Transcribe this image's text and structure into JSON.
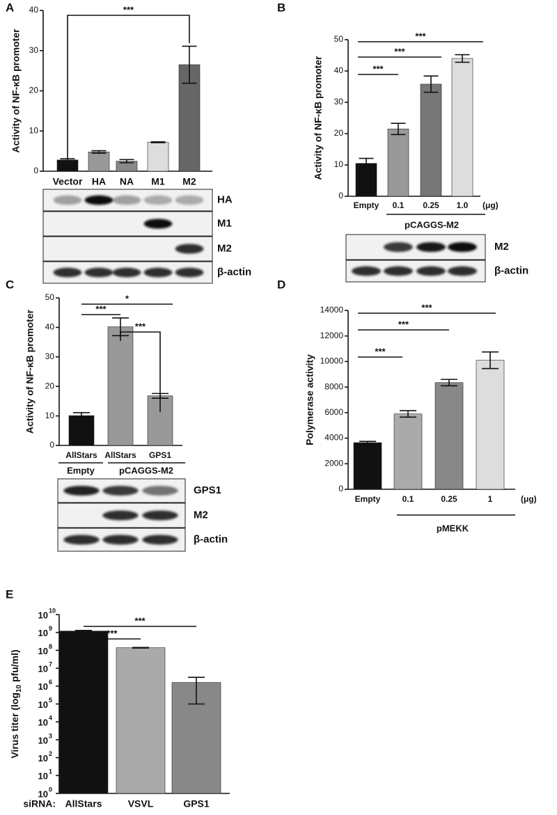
{
  "chart_data": [
    {
      "type": "bar",
      "panel": "A",
      "ylabel": "Activity of NF-κB promoter",
      "categories": [
        "Vector",
        "HA",
        "NA",
        "M1",
        "M2"
      ],
      "values": [
        2.8,
        4.8,
        2.5,
        7.2,
        26.5
      ],
      "errors": [
        0.3,
        0.3,
        0.4,
        0.1,
        4.6
      ],
      "colors": [
        "#111111",
        "#999999",
        "#888888",
        "#dddddd",
        "#666666"
      ],
      "ylim": [
        0,
        40
      ],
      "yticks": [
        0,
        10,
        20,
        30,
        40
      ],
      "annotations": [
        "***"
      ],
      "blots": [
        "HA",
        "M1",
        "M2",
        "β-actin"
      ]
    },
    {
      "type": "bar",
      "panel": "B",
      "ylabel": "Activity of NF-κB promoter",
      "categories": [
        "Empty",
        "0.1",
        "0.25",
        "1.0"
      ],
      "unit": "(μg)",
      "groups": [
        "pCAGGS-M2"
      ],
      "values": [
        10.5,
        21.5,
        35.8,
        44
      ],
      "errors": [
        1.6,
        1.8,
        2.6,
        1.2
      ],
      "colors": [
        "#111111",
        "#999999",
        "#777777",
        "#dddddd"
      ],
      "ylim": [
        0,
        50
      ],
      "yticks": [
        0,
        10,
        20,
        30,
        40,
        50
      ],
      "annotations": [
        "***",
        "***",
        "***"
      ],
      "blots": [
        "M2",
        "β-actin"
      ]
    },
    {
      "type": "bar",
      "panel": "C",
      "ylabel": "Activity of NF-κB promoter",
      "categories": [
        "AllStars",
        "AllStars",
        "GPS1"
      ],
      "groups": [
        "Empty",
        "pCAGGS-M2"
      ],
      "values": [
        10.1,
        40.2,
        16.8
      ],
      "errors": [
        1.0,
        3.0,
        0.8
      ],
      "colors": [
        "#111111",
        "#999999",
        "#999999"
      ],
      "ylim": [
        0,
        50
      ],
      "yticks": [
        0,
        10,
        20,
        30,
        40,
        50
      ],
      "annotations": [
        "*",
        "***",
        "***"
      ],
      "blots": [
        "GPS1",
        "M2",
        "β-actin"
      ]
    },
    {
      "type": "bar",
      "panel": "D",
      "ylabel": "Polymerase activity",
      "categories": [
        "Empty",
        "0.1",
        "0.25",
        "1"
      ],
      "unit": "(μg)",
      "groups": [
        "pMEKK"
      ],
      "values": [
        3650,
        5900,
        8350,
        10100
      ],
      "errors": [
        100,
        250,
        250,
        650
      ],
      "colors": [
        "#111111",
        "#aaaaaa",
        "#888888",
        "#dddddd"
      ],
      "ylim": [
        0,
        14000
      ],
      "yticks": [
        0,
        2000,
        4000,
        6000,
        8000,
        10000,
        12000,
        14000
      ],
      "annotations": [
        "***",
        "***",
        "***"
      ]
    },
    {
      "type": "bar",
      "panel": "E",
      "log_scale": true,
      "ylabel": [
        "Virus titer (log",
        "10",
        " pfu/ml)"
      ],
      "xprefix": "siRNA:",
      "categories": [
        "AllStars",
        "VSVL",
        "GPS1"
      ],
      "values": [
        1200000000,
        140000000,
        1600000
      ],
      "errors": [
        100000000,
        5000000,
        1500000
      ],
      "colors": [
        "#111111",
        "#aaaaaa",
        "#888888"
      ],
      "ylim": [
        1,
        10000000000
      ],
      "yticks": [
        {
          "value": 1,
          "label": "10",
          "exponent": "0"
        },
        {
          "value": 10,
          "label": "10",
          "exponent": "1"
        },
        {
          "value": 100,
          "label": "10",
          "exponent": "2"
        },
        {
          "value": 1000,
          "label": "10",
          "exponent": "3"
        },
        {
          "value": 10000,
          "label": "10",
          "exponent": "4"
        },
        {
          "value": 100000,
          "label": "10",
          "exponent": "5"
        },
        {
          "value": 1000000,
          "label": "10",
          "exponent": "6"
        },
        {
          "value": 10000000,
          "label": "10",
          "exponent": "7"
        },
        {
          "value": 100000000,
          "label": "10",
          "exponent": "8"
        },
        {
          "value": 1000000000,
          "label": "10",
          "exponent": "9"
        },
        {
          "value": 10000000000,
          "label": "10",
          "exponent": "10"
        }
      ],
      "annotations": [
        "***",
        "***"
      ]
    }
  ]
}
